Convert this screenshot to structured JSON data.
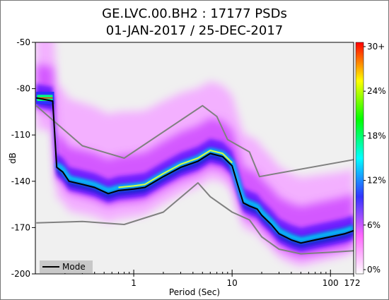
{
  "chart_data": {
    "type": "heatmap",
    "title": "GE.LVC.00.BH2 : 17177 PSDs",
    "subtitle": "01-JAN-2017 / 25-DEC-2017",
    "xlabel": "Period (Sec)",
    "ylabel": "dB",
    "x_scale": "log",
    "xlim": [
      0.1,
      172
    ],
    "ylim": [
      -200,
      -50
    ],
    "x_ticks": [
      {
        "value": 1,
        "label": "1"
      },
      {
        "value": 10,
        "label": "10"
      },
      {
        "value": 100,
        "label": "100"
      },
      {
        "value": 172,
        "label": "172"
      }
    ],
    "y_ticks": [
      {
        "value": -50,
        "label": "-50"
      },
      {
        "value": -80,
        "label": "-80"
      },
      {
        "value": -110,
        "label": "-110"
      },
      {
        "value": -140,
        "label": "-140"
      },
      {
        "value": -170,
        "label": "-170"
      },
      {
        "value": -200,
        "label": "-200"
      }
    ],
    "colorbar": {
      "labels": [
        "0%",
        "6%",
        "12%",
        "18%",
        "24%",
        "30+"
      ],
      "colors": [
        "#ffffff",
        "#ff66ff",
        "#3333ff",
        "#00ffff",
        "#00ff00",
        "#ffff00",
        "#ff0000"
      ]
    },
    "legend": {
      "entries": [
        "Mode"
      ],
      "placement": "bottom-left"
    },
    "mode_curve": [
      [
        0.102,
        -86
      ],
      [
        0.15,
        -88
      ],
      [
        0.165,
        -131
      ],
      [
        0.19,
        -134
      ],
      [
        0.22,
        -140
      ],
      [
        0.3,
        -142
      ],
      [
        0.4,
        -144
      ],
      [
        0.55,
        -148
      ],
      [
        0.7,
        -146
      ],
      [
        1.0,
        -145
      ],
      [
        1.3,
        -144
      ],
      [
        2.0,
        -137
      ],
      [
        3.0,
        -131
      ],
      [
        4.5,
        -127
      ],
      [
        6.0,
        -122
      ],
      [
        8.0,
        -124
      ],
      [
        10.0,
        -130
      ],
      [
        11.5,
        -143
      ],
      [
        13.0,
        -154
      ],
      [
        15.0,
        -156
      ],
      [
        18.0,
        -158
      ],
      [
        20.0,
        -162
      ],
      [
        25.0,
        -168
      ],
      [
        30.0,
        -174
      ],
      [
        40.0,
        -178
      ],
      [
        50.0,
        -180
      ],
      [
        70.0,
        -178
      ],
      [
        100.0,
        -176
      ],
      [
        140.0,
        -174
      ],
      [
        172.0,
        -172
      ]
    ],
    "high_noise_model": [
      [
        0.102,
        -91
      ],
      [
        0.3,
        -117
      ],
      [
        0.8,
        -125
      ],
      [
        5.0,
        -91
      ],
      [
        7.0,
        -98
      ],
      [
        9.0,
        -113
      ],
      [
        15.0,
        -121
      ],
      [
        19.0,
        -137
      ],
      [
        172.0,
        -126
      ]
    ],
    "low_noise_model": [
      [
        0.102,
        -167
      ],
      [
        0.3,
        -166
      ],
      [
        0.8,
        -168
      ],
      [
        2.0,
        -160
      ],
      [
        4.5,
        -141
      ],
      [
        6.0,
        -150
      ],
      [
        10.0,
        -160
      ],
      [
        15.0,
        -165
      ],
      [
        20.0,
        -176
      ],
      [
        30.0,
        -184
      ],
      [
        50.0,
        -187
      ],
      [
        100.0,
        -186
      ],
      [
        172.0,
        -185
      ]
    ]
  }
}
